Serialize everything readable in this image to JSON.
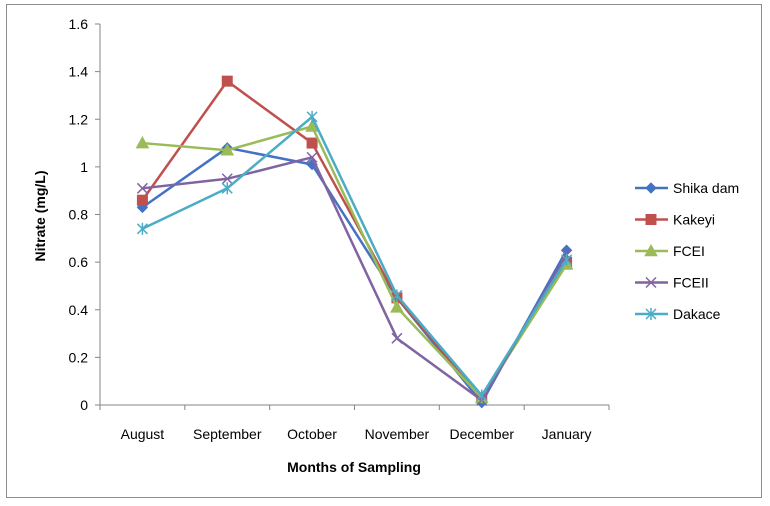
{
  "chart_data": {
    "type": "line",
    "categories": [
      "August",
      "September",
      "October",
      "November",
      "December",
      "January"
    ],
    "xlabel": "Months of Sampling",
    "ylabel": "Nitrate (mg/L)",
    "ylim": [
      0,
      1.6
    ],
    "yticks": [
      "0",
      "0.2",
      "0.4",
      "0.6",
      "0.8",
      "1",
      "1.2",
      "1.4",
      "1.6"
    ],
    "grid": false,
    "legend_position": "right",
    "series": [
      {
        "name": "Shika dam",
        "color": "#4472c4",
        "marker": "diamond",
        "values": [
          0.83,
          1.08,
          1.01,
          0.45,
          0.01,
          0.65
        ]
      },
      {
        "name": "Kakeyi",
        "color": "#c0504d",
        "marker": "square",
        "values": [
          0.86,
          1.36,
          1.1,
          0.45,
          0.03,
          0.6
        ]
      },
      {
        "name": "FCEI",
        "color": "#9bbb59",
        "marker": "triangle",
        "values": [
          1.1,
          1.07,
          1.17,
          0.41,
          0.03,
          0.59
        ]
      },
      {
        "name": "FCEII",
        "color": "#8064a2",
        "marker": "x",
        "values": [
          0.91,
          0.95,
          1.04,
          0.28,
          0.02,
          0.63
        ]
      },
      {
        "name": "Dakace",
        "color": "#4bacc6",
        "marker": "star",
        "values": [
          0.74,
          0.91,
          1.21,
          0.46,
          0.04,
          0.61
        ]
      }
    ]
  }
}
